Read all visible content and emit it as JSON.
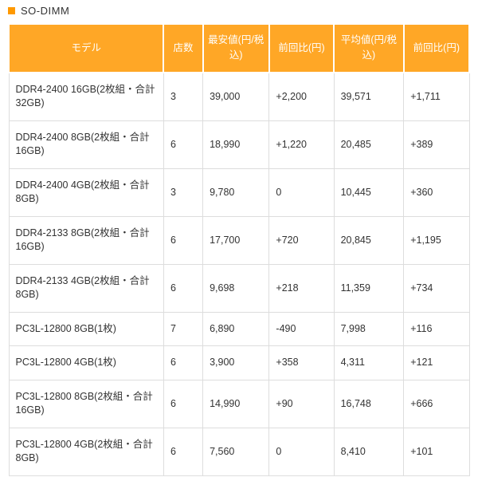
{
  "section": {
    "title": "SO-DIMM"
  },
  "table": {
    "columns": [
      "モデル",
      "店数",
      "最安値(円/税込)",
      "前回比(円)",
      "平均値(円/税込)",
      "前回比(円)"
    ],
    "header_bg": "#ffa726",
    "header_text_color": "#ffffff",
    "rows": [
      {
        "model": "DDR4-2400 16GB(2枚組・合計32GB)",
        "shops": "3",
        "minprice": "39,000",
        "diff1": "+2,200",
        "avgprice": "39,571",
        "diff2": "+1,711"
      },
      {
        "model": "DDR4-2400 8GB(2枚組・合計16GB)",
        "shops": "6",
        "minprice": "18,990",
        "diff1": "+1,220",
        "avgprice": "20,485",
        "diff2": "+389"
      },
      {
        "model": "DDR4-2400 4GB(2枚組・合計8GB)",
        "shops": "3",
        "minprice": "9,780",
        "diff1": "0",
        "avgprice": "10,445",
        "diff2": "+360"
      },
      {
        "model": "DDR4-2133 8GB(2枚組・合計16GB)",
        "shops": "6",
        "minprice": "17,700",
        "diff1": "+720",
        "avgprice": "20,845",
        "diff2": "+1,195"
      },
      {
        "model": "DDR4-2133 4GB(2枚組・合計8GB)",
        "shops": "6",
        "minprice": "9,698",
        "diff1": "+218",
        "avgprice": "11,359",
        "diff2": "+734"
      },
      {
        "model": "PC3L-12800 8GB(1枚)",
        "shops": "7",
        "minprice": "6,890",
        "diff1": "-490",
        "avgprice": "7,998",
        "diff2": "+116"
      },
      {
        "model": "PC3L-12800 4GB(1枚)",
        "shops": "6",
        "minprice": "3,900",
        "diff1": "+358",
        "avgprice": "4,311",
        "diff2": "+121"
      },
      {
        "model": "PC3L-12800 8GB(2枚組・合計16GB)",
        "shops": "6",
        "minprice": "14,990",
        "diff1": "+90",
        "avgprice": "16,748",
        "diff2": "+666"
      },
      {
        "model": "PC3L-12800 4GB(2枚組・合計8GB)",
        "shops": "6",
        "minprice": "7,560",
        "diff1": "0",
        "avgprice": "8,410",
        "diff2": "+101"
      }
    ]
  }
}
